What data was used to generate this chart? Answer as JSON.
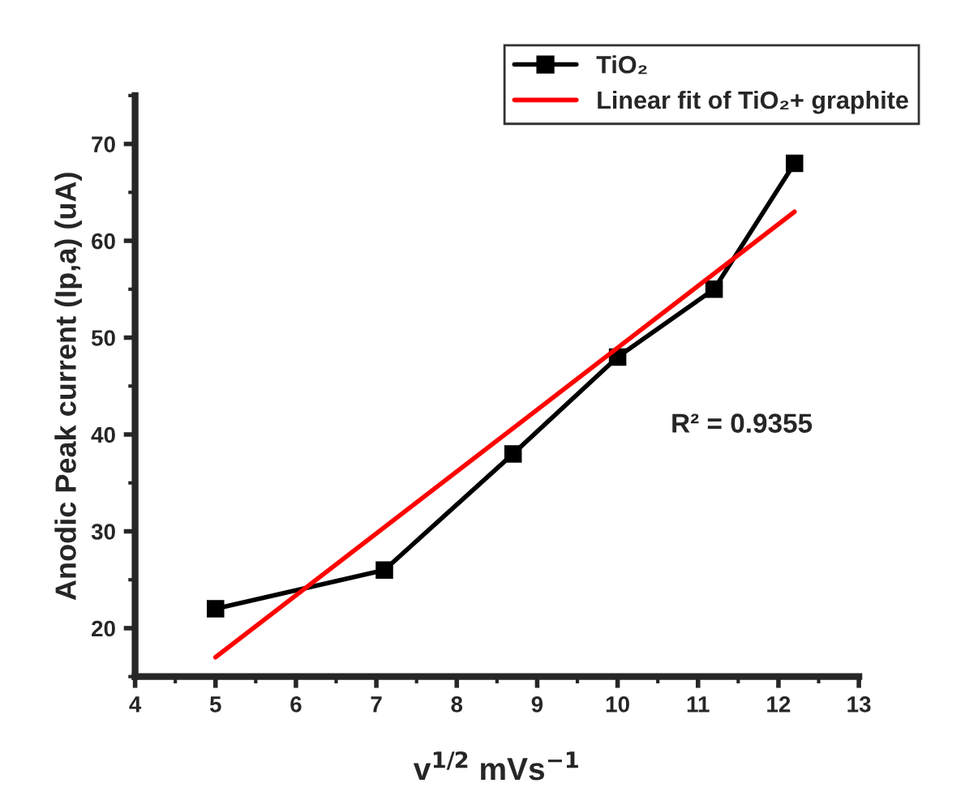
{
  "chart_data": {
    "type": "line",
    "xlabel": "v$^{1/2}$ mVs$^{−1}$",
    "ylabel": "Anodic Peak current (Ip,a) (uA)",
    "annotations": [
      "R² = 0.9355"
    ],
    "series": [
      {
        "name": "TiO₂",
        "color": "#000000",
        "marker": "square",
        "x": [
          5,
          7.1,
          8.7,
          10,
          11.2,
          12.2
        ],
        "values": [
          22,
          26,
          38,
          48,
          55,
          68
        ]
      },
      {
        "name": "Linear fit of TiO₂+ graphite",
        "color": "#ff0000",
        "marker": "none",
        "x": [
          5,
          12.2
        ],
        "values": [
          17,
          63
        ]
      }
    ],
    "xlim": [
      4,
      13
    ],
    "xticks": [
      4,
      5,
      6,
      7,
      8,
      9,
      10,
      11,
      12,
      13
    ],
    "ylim": [
      15,
      75
    ],
    "yticks": [
      20,
      30,
      40,
      50,
      60,
      70
    ],
    "grid": false,
    "legend": "top right"
  }
}
